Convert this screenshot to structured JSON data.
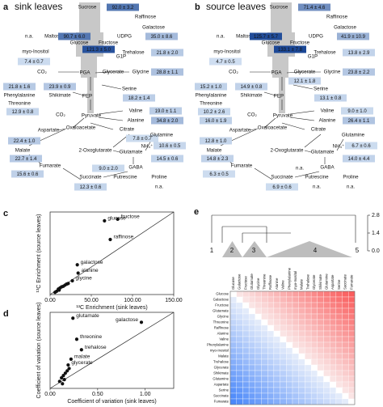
{
  "panels": [
    {
      "letter": "a",
      "title": "sink leaves",
      "nodes": [
        {
          "label": "Sucrose",
          "value": "92.0 ± 3.2"
        },
        {
          "label": "Raffinose"
        },
        {
          "label": "Galactose",
          "value": "35.0 ± 8.6"
        },
        {
          "label": "Maltose",
          "value": "n.a."
        },
        {
          "label": "Glucose",
          "value": "90.7 ± 6.0"
        },
        {
          "label": "Fructose",
          "value": "121.3 ± 5.0"
        },
        {
          "label": "UDPG"
        },
        {
          "label": "G1P"
        },
        {
          "label": "Trehalose",
          "value": "21.8 ± 2.0"
        },
        {
          "label": "myo-Inositol",
          "value": "7.4 ± 0.7"
        },
        {
          "label": "CO₂"
        },
        {
          "label": "PGA"
        },
        {
          "label": "Glycerate"
        },
        {
          "label": "Glycine",
          "value": "28.8 ± 1.1"
        },
        {
          "label": "Phenylalanine",
          "value": "21.8 ± 1.6"
        },
        {
          "label": "Shikimate",
          "value": "23.9 ± 0.9"
        },
        {
          "label": "PEP"
        },
        {
          "label": "Serine",
          "value": "18.2 ± 1.4"
        },
        {
          "label": "Threonine",
          "value": "12.9 ± 0.8"
        },
        {
          "label": "CO₂"
        },
        {
          "label": "Pyruvate"
        },
        {
          "label": "Valine",
          "value": "19.0 ± 1.1"
        },
        {
          "label": "Alanine",
          "value": "34.8 ± 2.0"
        },
        {
          "label": "Aspartate",
          "value": "22.4 ± 1.0"
        },
        {
          "label": "Oxaloacetate"
        },
        {
          "label": "Citrate",
          "value": "7.8 ± 0.7"
        },
        {
          "label": "Glutamine",
          "value": "10.6 ± 0.5"
        },
        {
          "label": "NH₄⁺"
        },
        {
          "label": "2-Oxoglutarate"
        },
        {
          "label": "Glutamate",
          "value": "14.5 ± 0.6"
        },
        {
          "label": "Malate",
          "value": "22.7 ± 1.4"
        },
        {
          "label": "Fumarate",
          "value": "15.6 ± 0.6"
        },
        {
          "label": "GABA",
          "value": "9.0 ± 2.0"
        },
        {
          "label": "Succinate",
          "value": "12.3 ± 0.6"
        },
        {
          "label": "Putrescine"
        },
        {
          "label": "Proline",
          "value": "n.a."
        }
      ]
    },
    {
      "letter": "b",
      "title": "source leaves",
      "nodes": [
        {
          "label": "Sucrose",
          "value": "71.4 ± 4.6"
        },
        {
          "label": "Raffinose"
        },
        {
          "label": "Galactose",
          "value": "41.9 ± 10.9"
        },
        {
          "label": "Maltose",
          "value": "n.a."
        },
        {
          "label": "Glucose",
          "value": "125.7 ± 5.7"
        },
        {
          "label": "Fructose",
          "value": "133.1 ± 7.8"
        },
        {
          "label": "UDPG"
        },
        {
          "label": "G1P"
        },
        {
          "label": "Trehalose",
          "value": "13.8 ± 2.9"
        },
        {
          "label": "myo-Inositol",
          "value": "4.7 ± 0.5"
        },
        {
          "label": "CO₂"
        },
        {
          "label": "PGA"
        },
        {
          "label": "Glycerate",
          "value": "12.1 ± 1.8"
        },
        {
          "label": "Glycine",
          "value": "23.8 ± 2.2"
        },
        {
          "label": "Phenylalanine",
          "value": "15.2 ± 1.0"
        },
        {
          "label": "Shikimate",
          "value": "14.9 ± 0.8"
        },
        {
          "label": "PEP"
        },
        {
          "label": "Serine",
          "value": "13.1 ± 0.8"
        },
        {
          "label": "Threonine",
          "value": "10.2 ± 2.6"
        },
        {
          "label": "CO₂"
        },
        {
          "label": "Pyruvate"
        },
        {
          "label": "Valine",
          "value": "9.0 ± 1.0"
        },
        {
          "label": "Alanine",
          "value": "26.4 ± 1.1"
        },
        {
          "label": "Aspartate",
          "value": "12.8 ± 1.0"
        },
        {
          "label": "Oxaloacetate"
        },
        {
          "label": "Citrate"
        },
        {
          "label": "Glutamine",
          "value": "6.7 ± 0.6"
        },
        {
          "label": "NH₄⁺"
        },
        {
          "label": "2-Oxoglutarate"
        },
        {
          "label": "Glutamate",
          "value": "14.0 ± 4.4"
        },
        {
          "label": "Malate",
          "value": "14.8 ± 2.3"
        },
        {
          "label": "Fumarate",
          "value": "6.3 ± 0.5"
        },
        {
          "label": "GABA",
          "value": "n.a."
        },
        {
          "label": "Succinate",
          "value": "6.9 ± 0.6"
        },
        {
          "label": "Putrescine",
          "value": "n.a."
        },
        {
          "label": "Proline",
          "value": "n.a."
        },
        {
          "value": "16.0 ± 1.9"
        }
      ]
    }
  ],
  "chart_data": [
    {
      "type": "scatter",
      "letter": "c",
      "xlabel": "¹³C Enrichment (sink leaves)",
      "ylabel": "¹³C Enrichment (source leaves)",
      "xlim": [
        0,
        150
      ],
      "ylim": [
        0,
        150
      ],
      "xticks": [
        {
          "value": 0,
          "label": "0.00"
        },
        {
          "value": 50,
          "label": "50.00"
        },
        {
          "value": 100,
          "label": "100.00"
        },
        {
          "value": 150,
          "label": "150.00"
        }
      ],
      "identity_line": true,
      "color": "#111111",
      "x": [
        82,
        66,
        73,
        33,
        34,
        27,
        8,
        10,
        12,
        14,
        16,
        18,
        20,
        22,
        6,
        11
      ],
      "values": [
        137,
        134,
        100,
        54,
        39,
        25,
        6,
        10,
        12,
        14,
        15,
        17,
        19,
        20,
        4,
        8
      ],
      "point_labels": [
        "fructose",
        "glucose",
        "raffinose",
        "galactose",
        "alanine",
        "glycine",
        null,
        null,
        null,
        null,
        null,
        null,
        null,
        null,
        null,
        null
      ]
    },
    {
      "type": "scatter",
      "letter": "d",
      "xlabel": "Coefficient of variation (sink leaves)",
      "ylabel": "Coefficient of variation (source leaves)",
      "xlim": [
        0,
        1.3
      ],
      "ylim": [
        0,
        1.3
      ],
      "xticks": [
        {
          "value": 0,
          "label": "0.00"
        },
        {
          "value": 0.5,
          "label": "0.50"
        },
        {
          "value": 1,
          "label": "1.00"
        }
      ],
      "identity_line": true,
      "color": "#111111",
      "x": [
        0.24,
        0.96,
        0.28,
        0.33,
        0.22,
        0.19,
        0.1,
        0.12,
        0.14,
        0.16,
        0.18,
        0.2,
        0.15,
        0.13
      ],
      "values": [
        1.2,
        1.13,
        0.84,
        0.66,
        0.5,
        0.4,
        0.12,
        0.18,
        0.22,
        0.26,
        0.3,
        0.34,
        0.15,
        0.08
      ],
      "point_labels": [
        "glutamate",
        "galactose",
        "threonine",
        "trehalose",
        "malate",
        "glycerate",
        null,
        null,
        null,
        null,
        null,
        null,
        null,
        null
      ]
    }
  ],
  "heatmap": {
    "letter": "e",
    "clusters": [
      "1",
      "2",
      "3",
      "4",
      "5"
    ],
    "height_ticks": [
      2.8,
      1.4,
      {
        "value": 0,
        "label": "0.0"
      }
    ],
    "labels": [
      "Glucose",
      "Galactose",
      "Fructose",
      "Glutamate",
      "Glycine",
      "Threonine",
      "Raffinose",
      "Alanine",
      "Valine",
      "Phenylalanine",
      "myo-Inositol",
      "Malate",
      "Trehalose",
      "Glycerate",
      "Shikimate",
      "Glutamine",
      "Aspartate",
      "Serine",
      "Succinate",
      "Fumarate"
    ]
  }
}
